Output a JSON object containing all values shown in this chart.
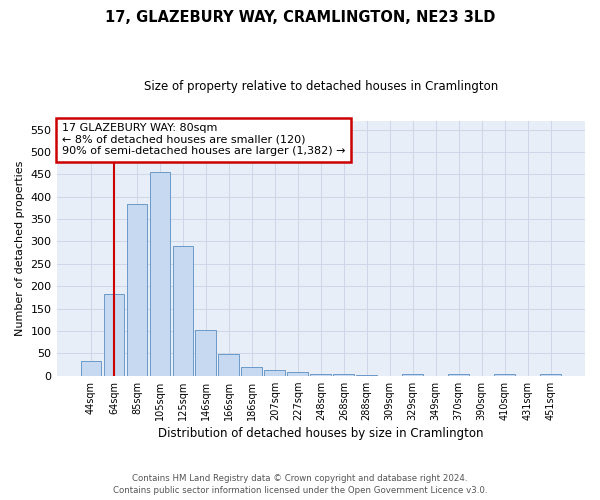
{
  "title": "17, GLAZEBURY WAY, CRAMLINGTON, NE23 3LD",
  "subtitle": "Size of property relative to detached houses in Cramlington",
  "xlabel": "Distribution of detached houses by size in Cramlington",
  "ylabel": "Number of detached properties",
  "footer_line1": "Contains HM Land Registry data © Crown copyright and database right 2024.",
  "footer_line2": "Contains public sector information licensed under the Open Government Licence v3.0.",
  "categories": [
    "44sqm",
    "64sqm",
    "85sqm",
    "105sqm",
    "125sqm",
    "146sqm",
    "166sqm",
    "186sqm",
    "207sqm",
    "227sqm",
    "248sqm",
    "268sqm",
    "288sqm",
    "309sqm",
    "329sqm",
    "349sqm",
    "370sqm",
    "390sqm",
    "410sqm",
    "431sqm",
    "451sqm"
  ],
  "values": [
    33,
    183,
    383,
    456,
    289,
    103,
    48,
    19,
    13,
    8,
    3,
    4,
    1,
    0,
    4,
    0,
    3,
    0,
    3,
    0,
    4
  ],
  "bar_color": "#c6d9f0",
  "bar_edge_color": "#5a8fc2",
  "property_line_color": "#cc0000",
  "annotation_text": "17 GLAZEBURY WAY: 80sqm\n← 8% of detached houses are smaller (120)\n90% of semi-detached houses are larger (1,382) →",
  "annotation_box_color": "#ffffff",
  "annotation_box_edge": "#cc0000",
  "ylim": [
    0,
    570
  ],
  "yticks": [
    0,
    50,
    100,
    150,
    200,
    250,
    300,
    350,
    400,
    450,
    500,
    550
  ],
  "grid_color": "#cdd7e8",
  "bg_color": "#e8eef7"
}
